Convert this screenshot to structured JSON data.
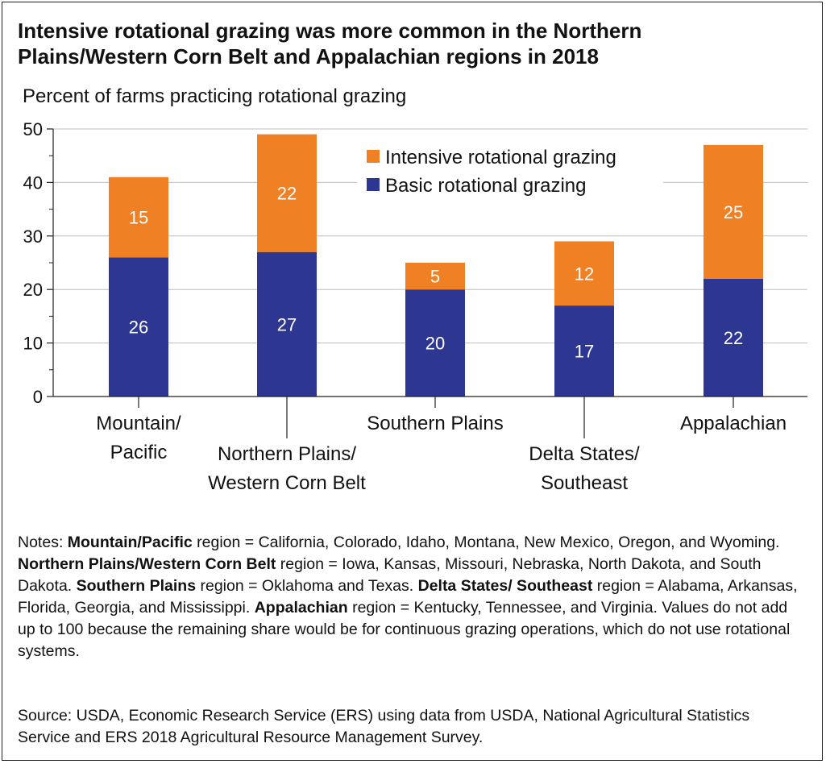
{
  "title": "Intensive rotational grazing was more common in the Northern Plains/Western Corn Belt and Appalachian regions in 2018",
  "colors": {
    "intensive": "#f08024",
    "basic": "#2d3691",
    "grid": "#bdbdbd",
    "axis": "#222222"
  },
  "chart_data": {
    "type": "bar",
    "stacked": true,
    "title": "Intensive rotational grazing was more common in the Northern Plains/Western Corn Belt and Appalachian regions in 2018",
    "ylabel": "Percent of farms practicing rotational grazing",
    "xlabel": "",
    "ylim": [
      0,
      50
    ],
    "yticks": [
      0,
      10,
      20,
      30,
      40,
      50
    ],
    "grid": true,
    "legend_position": "top-right",
    "categories": [
      [
        "Mountain/",
        "Pacific"
      ],
      [
        "Northern Plains/",
        "Western Corn Belt"
      ],
      [
        "Southern Plains"
      ],
      [
        "Delta States/",
        "Southeast"
      ],
      [
        "Appalachian"
      ]
    ],
    "series": [
      {
        "name": "Basic rotational grazing",
        "values": [
          26,
          27,
          20,
          17,
          22
        ]
      },
      {
        "name": "Intensive rotational grazing",
        "values": [
          15,
          22,
          5,
          12,
          25
        ]
      }
    ],
    "legend_order": [
      "Intensive rotational grazing",
      "Basic rotational grazing"
    ]
  },
  "notes": {
    "prefix": "Notes: ",
    "segments": [
      {
        "b": "Mountain/Pacific"
      },
      {
        "t": " region = California, Colorado, Idaho, Montana, New Mexico, Oregon, and Wyoming. "
      },
      {
        "b": "Northern Plains/Western Corn Belt"
      },
      {
        "t": " region = Iowa, Kansas, Missouri, Nebraska, North Dakota, and South Dakota. "
      },
      {
        "b": "Southern Plains"
      },
      {
        "t": " region = Oklahoma and Texas. "
      },
      {
        "b": "Delta States/ Southeast"
      },
      {
        "t": " region = Alabama, Arkansas, Florida, Georgia, and Mississippi. "
      },
      {
        "b": "Appalachian"
      },
      {
        "t": " region = Kentucky, Tennessee, and Virginia. Values do not add up to 100 because the remaining share would be for continuous grazing operations, which do not use rotational systems."
      }
    ]
  },
  "source": "Source: USDA, Economic Research Service (ERS) using data from USDA, National Agricultural Statistics Service and ERS 2018 Agricultural Resource Management Survey."
}
